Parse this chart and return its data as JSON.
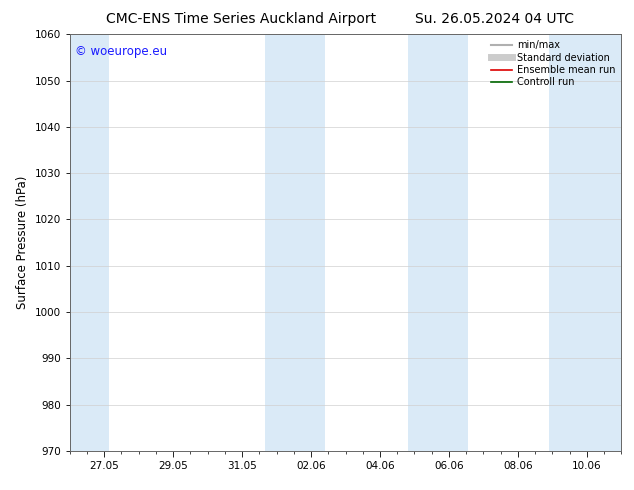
{
  "title_left": "CMC-ENS Time Series Auckland Airport",
  "title_right": "Su. 26.05.2024 04 UTC",
  "ylabel": "Surface Pressure (hPa)",
  "ylim": [
    970,
    1060
  ],
  "yticks": [
    970,
    980,
    990,
    1000,
    1010,
    1020,
    1030,
    1040,
    1050,
    1060
  ],
  "xtick_labels": [
    "27.05",
    "29.05",
    "31.05",
    "02.06",
    "04.06",
    "06.06",
    "08.06",
    "10.06"
  ],
  "x_tick_positions": [
    1,
    3,
    5,
    7,
    9,
    11,
    13,
    15
  ],
  "x_min": 0,
  "x_max": 16,
  "watermark": "© woeurope.eu",
  "watermark_color": "#1a1aff",
  "shaded_bands": [
    {
      "x_start": 0.0,
      "x_end": 1.15
    },
    {
      "x_start": 5.65,
      "x_end": 7.4
    },
    {
      "x_start": 9.8,
      "x_end": 11.55
    },
    {
      "x_start": 13.9,
      "x_end": 16.0
    }
  ],
  "band_color": "#daeaf7",
  "legend_entries": [
    {
      "label": "min/max",
      "color": "#b0b0b0",
      "lw": 1.5,
      "ls": "-"
    },
    {
      "label": "Standard deviation",
      "color": "#cccccc",
      "lw": 5,
      "ls": "-"
    },
    {
      "label": "Ensemble mean run",
      "color": "#dd0000",
      "lw": 1.2,
      "ls": "-"
    },
    {
      "label": "Controll run",
      "color": "#006600",
      "lw": 1.2,
      "ls": "-"
    }
  ],
  "background_color": "#ffffff",
  "plot_bg_color": "#ffffff",
  "grid_color": "#d0d0d0",
  "title_fontsize": 10,
  "label_fontsize": 8.5,
  "tick_fontsize": 7.5,
  "watermark_fontsize": 8.5
}
